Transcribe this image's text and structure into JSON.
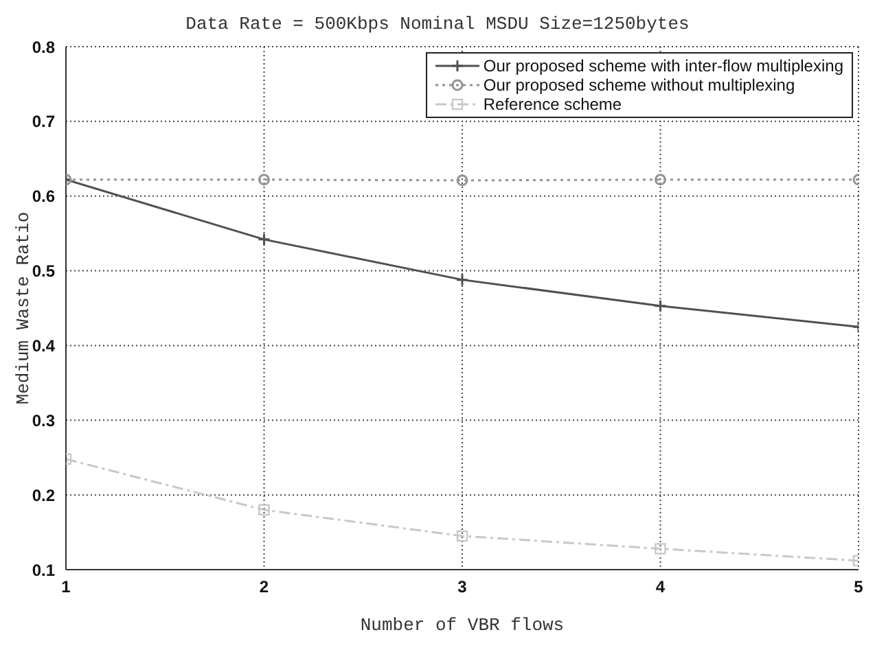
{
  "chart_data": {
    "type": "line",
    "title": "Data Rate = 500Kbps Nominal MSDU Size=1250bytes",
    "xlabel": "Number of VBR flows",
    "ylabel": "Medium Waste Ratio",
    "x": [
      1,
      2,
      3,
      4,
      5
    ],
    "series": [
      {
        "name": "Our proposed scheme with inter-flow multiplexing",
        "color": "#505050",
        "marker": "cross",
        "line_style": "solid",
        "values": [
          0.622,
          0.542,
          0.488,
          0.453,
          0.425
        ]
      },
      {
        "name": "Our proposed scheme without multiplexing",
        "color": "#949494",
        "marker": "circle",
        "line_style": "dotted",
        "values": [
          0.622,
          0.622,
          0.621,
          0.622,
          0.622
        ]
      },
      {
        "name": "Reference scheme",
        "color": "#c8c8c8",
        "marker": "square",
        "line_style": "dashed",
        "values": [
          0.248,
          0.18,
          0.145,
          0.128,
          0.112
        ]
      }
    ],
    "xlim": [
      1,
      5
    ],
    "xticks": [
      1,
      2,
      3,
      4,
      5
    ],
    "ylim": [
      0.1,
      0.8
    ],
    "yticks": [
      0.1,
      0.2,
      0.3,
      0.4,
      0.5,
      0.6,
      0.7,
      0.8
    ],
    "grid": true,
    "legend": "top right"
  }
}
